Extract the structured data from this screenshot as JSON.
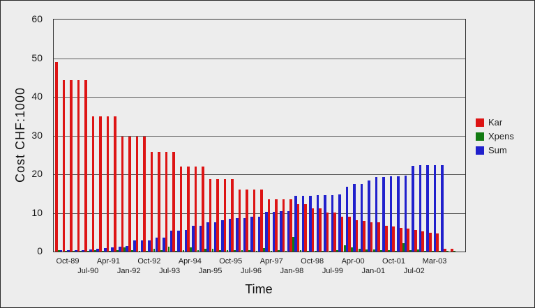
{
  "figure": {
    "background_color": "#ededed",
    "border_color": "#2a2a2a",
    "gridline_color": "#5a5a5a"
  },
  "chart_data": {
    "type": "bar",
    "title": "",
    "xlabel": "Time",
    "ylabel": "Cost CHF:1000",
    "ylim": [
      0,
      60
    ],
    "y_ticks": [
      0,
      10,
      20,
      30,
      40,
      50,
      60
    ],
    "grid": "horizontal",
    "legend_position": "right-outside",
    "x_tick_labels": [
      "Oct-89",
      "Jul-90",
      "Apr-91",
      "Jan-92",
      "Oct-92",
      "Jul-93",
      "Apr-94",
      "Jan-95",
      "Oct-95",
      "Jul-96",
      "Apr-97",
      "Jan-98",
      "Oct-98",
      "Jul-99",
      "Apr-00",
      "Jan-01",
      "Oct-01",
      "Jul-02",
      "Mar-03"
    ],
    "x_tick_label_stagger": "two-rows",
    "categories": [
      "Oct-89",
      "Jan-90",
      "Apr-90",
      "Jul-90",
      "Oct-90",
      "Jan-91",
      "Apr-91",
      "Jul-91",
      "Oct-91",
      "Jan-92",
      "Apr-92",
      "Jul-92",
      "Oct-92",
      "Jan-93",
      "Apr-93",
      "Jul-93",
      "Oct-93",
      "Jan-94",
      "Apr-94",
      "Jul-94",
      "Oct-94",
      "Jan-95",
      "Apr-95",
      "Jul-95",
      "Oct-95",
      "Jan-96",
      "Apr-96",
      "Jul-96",
      "Oct-96",
      "Jan-97",
      "Apr-97",
      "Jul-97",
      "Oct-97",
      "Jan-98",
      "Apr-98",
      "Jul-98",
      "Oct-98",
      "Jan-99",
      "Apr-99",
      "Jul-99",
      "Oct-99",
      "Jan-00",
      "Apr-00",
      "Jul-00",
      "Oct-00",
      "Jan-01",
      "Apr-01",
      "Jul-01",
      "Oct-01",
      "Jan-02",
      "Apr-02",
      "Jul-02",
      "Oct-02",
      "Jan-03",
      "Mar-03"
    ],
    "series": [
      {
        "name": "Kar",
        "color": "#dd1414",
        "values": [
          49,
          44.4,
          44.4,
          44.4,
          44.4,
          35,
          35,
          35,
          35,
          29.8,
          29.8,
          29.8,
          29.8,
          25.8,
          25.8,
          25.8,
          25.8,
          21.9,
          21.9,
          21.9,
          21.9,
          18.8,
          18.8,
          18.8,
          18.8,
          16.1,
          16.1,
          16.1,
          16.1,
          13.6,
          13.6,
          13.6,
          13.6,
          12.2,
          12.2,
          11.2,
          11.2,
          10.1,
          10.1,
          9,
          9,
          8.2,
          8,
          7.6,
          7.5,
          6.6,
          6.5,
          6.1,
          5.9,
          5.5,
          5.2,
          4.9,
          4.7,
          0.8,
          0.8
        ]
      },
      {
        "name": "Xpens",
        "color": "#127a12",
        "values": [
          0.3,
          0.2,
          0.2,
          0.2,
          0.2,
          0.3,
          0.2,
          0.2,
          0.3,
          1.1,
          0.4,
          0.2,
          0.2,
          0.8,
          0.3,
          1.3,
          0.2,
          0.3,
          1.1,
          0.3,
          0.8,
          0.8,
          0.4,
          0.3,
          0.3,
          0.3,
          0.4,
          0.2,
          0.9,
          0.2,
          0.3,
          0.2,
          3.8,
          0.3,
          0.2,
          0.2,
          0.2,
          0.2,
          0.3,
          1.7,
          1,
          0.8,
          0.5,
          0.6,
          0.3,
          0.3,
          0.2,
          2.2,
          0.3,
          0.6,
          0.2,
          0.2,
          0.1,
          0.1,
          0.1
        ]
      },
      {
        "name": "Sum",
        "color": "#2020cc",
        "values": [
          0.3,
          0.3,
          0.4,
          0.4,
          0.5,
          0.8,
          0.9,
          1,
          1.2,
          1.4,
          2.8,
          2.8,
          2.8,
          3.6,
          3.6,
          5.4,
          5.4,
          5.6,
          6.7,
          6.7,
          7.5,
          7.5,
          8.1,
          8.4,
          8.6,
          8.6,
          9,
          9,
          10.3,
          10.3,
          10.4,
          10.4,
          14.5,
          14.5,
          14.5,
          14.6,
          14.6,
          14.6,
          14.7,
          16.8,
          17.5,
          17.5,
          18.4,
          19.3,
          19.3,
          19.4,
          19.5,
          19.6,
          22.2,
          22.3,
          22.3,
          22.4,
          22.4,
          0,
          0
        ]
      }
    ]
  },
  "legend": {
    "items": [
      {
        "label": "Kar",
        "color": "#dd1414"
      },
      {
        "label": "Xpens",
        "color": "#127a12"
      },
      {
        "label": "Sum",
        "color": "#2020cc"
      }
    ]
  }
}
